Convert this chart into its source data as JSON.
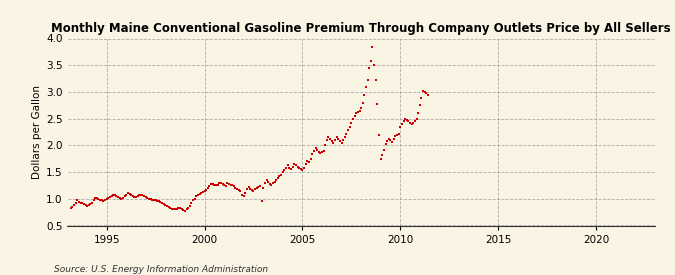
{
  "title": "Monthly Maine Conventional Gasoline Premium Through Company Outlets Price by All Sellers",
  "ylabel": "Dollars per Gallon",
  "source": "Source: U.S. Energy Information Administration",
  "background_color": "#FAF4E4",
  "plot_bg_color": "#FAF4E4",
  "dot_color": "#CC0000",
  "xlim": [
    1993.0,
    2023.0
  ],
  "ylim": [
    0.5,
    4.0
  ],
  "yticks": [
    0.5,
    1.0,
    1.5,
    2.0,
    2.5,
    3.0,
    3.5,
    4.0
  ],
  "xticks": [
    1995,
    2000,
    2005,
    2010,
    2015,
    2020
  ],
  "data": [
    [
      1993.17,
      0.83
    ],
    [
      1993.25,
      0.85
    ],
    [
      1993.33,
      0.88
    ],
    [
      1993.42,
      0.93
    ],
    [
      1993.5,
      0.97
    ],
    [
      1993.58,
      0.94
    ],
    [
      1993.67,
      0.93
    ],
    [
      1993.75,
      0.92
    ],
    [
      1993.83,
      0.9
    ],
    [
      1993.92,
      0.88
    ],
    [
      1994.0,
      0.87
    ],
    [
      1994.08,
      0.88
    ],
    [
      1994.17,
      0.9
    ],
    [
      1994.25,
      0.93
    ],
    [
      1994.33,
      0.97
    ],
    [
      1994.42,
      1.02
    ],
    [
      1994.5,
      1.01
    ],
    [
      1994.58,
      0.99
    ],
    [
      1994.67,
      0.98
    ],
    [
      1994.75,
      0.97
    ],
    [
      1994.83,
      0.96
    ],
    [
      1994.92,
      0.97
    ],
    [
      1995.0,
      0.99
    ],
    [
      1995.08,
      1.01
    ],
    [
      1995.17,
      1.04
    ],
    [
      1995.25,
      1.06
    ],
    [
      1995.33,
      1.08
    ],
    [
      1995.42,
      1.07
    ],
    [
      1995.5,
      1.05
    ],
    [
      1995.58,
      1.03
    ],
    [
      1995.67,
      1.01
    ],
    [
      1995.75,
      1.0
    ],
    [
      1995.83,
      1.02
    ],
    [
      1995.92,
      1.05
    ],
    [
      1996.0,
      1.08
    ],
    [
      1996.08,
      1.1
    ],
    [
      1996.17,
      1.09
    ],
    [
      1996.25,
      1.07
    ],
    [
      1996.33,
      1.05
    ],
    [
      1996.42,
      1.03
    ],
    [
      1996.5,
      1.04
    ],
    [
      1996.58,
      1.06
    ],
    [
      1996.67,
      1.07
    ],
    [
      1996.75,
      1.08
    ],
    [
      1996.83,
      1.07
    ],
    [
      1996.92,
      1.05
    ],
    [
      1997.0,
      1.04
    ],
    [
      1997.08,
      1.02
    ],
    [
      1997.17,
      1.0
    ],
    [
      1997.25,
      0.99
    ],
    [
      1997.33,
      0.98
    ],
    [
      1997.42,
      0.97
    ],
    [
      1997.5,
      0.97
    ],
    [
      1997.58,
      0.96
    ],
    [
      1997.67,
      0.95
    ],
    [
      1997.75,
      0.94
    ],
    [
      1997.83,
      0.93
    ],
    [
      1997.92,
      0.91
    ],
    [
      1998.0,
      0.89
    ],
    [
      1998.08,
      0.87
    ],
    [
      1998.17,
      0.85
    ],
    [
      1998.25,
      0.83
    ],
    [
      1998.33,
      0.81
    ],
    [
      1998.42,
      0.8
    ],
    [
      1998.5,
      0.8
    ],
    [
      1998.58,
      0.81
    ],
    [
      1998.67,
      0.83
    ],
    [
      1998.75,
      0.82
    ],
    [
      1998.83,
      0.8
    ],
    [
      1998.92,
      0.79
    ],
    [
      1999.0,
      0.78
    ],
    [
      1999.08,
      0.8
    ],
    [
      1999.17,
      0.83
    ],
    [
      1999.25,
      0.87
    ],
    [
      1999.33,
      0.93
    ],
    [
      1999.42,
      0.98
    ],
    [
      1999.5,
      1.0
    ],
    [
      1999.58,
      1.05
    ],
    [
      1999.67,
      1.07
    ],
    [
      1999.75,
      1.09
    ],
    [
      1999.83,
      1.11
    ],
    [
      1999.92,
      1.13
    ],
    [
      2000.0,
      1.15
    ],
    [
      2000.08,
      1.17
    ],
    [
      2000.17,
      1.2
    ],
    [
      2000.25,
      1.23
    ],
    [
      2000.33,
      1.27
    ],
    [
      2000.42,
      1.28
    ],
    [
      2000.5,
      1.26
    ],
    [
      2000.58,
      1.25
    ],
    [
      2000.67,
      1.26
    ],
    [
      2000.75,
      1.29
    ],
    [
      2000.83,
      1.3
    ],
    [
      2000.92,
      1.28
    ],
    [
      2001.0,
      1.26
    ],
    [
      2001.08,
      1.24
    ],
    [
      2001.17,
      1.3
    ],
    [
      2001.25,
      1.28
    ],
    [
      2001.33,
      1.26
    ],
    [
      2001.42,
      1.25
    ],
    [
      2001.5,
      1.23
    ],
    [
      2001.58,
      1.2
    ],
    [
      2001.67,
      1.18
    ],
    [
      2001.75,
      1.16
    ],
    [
      2001.83,
      1.14
    ],
    [
      2001.92,
      1.07
    ],
    [
      2002.0,
      1.05
    ],
    [
      2002.08,
      1.1
    ],
    [
      2002.17,
      1.18
    ],
    [
      2002.25,
      1.22
    ],
    [
      2002.33,
      1.19
    ],
    [
      2002.42,
      1.16
    ],
    [
      2002.5,
      1.14
    ],
    [
      2002.58,
      1.18
    ],
    [
      2002.67,
      1.2
    ],
    [
      2002.75,
      1.22
    ],
    [
      2002.83,
      1.24
    ],
    [
      2002.92,
      0.96
    ],
    [
      2003.0,
      1.2
    ],
    [
      2003.08,
      1.3
    ],
    [
      2003.17,
      1.35
    ],
    [
      2003.25,
      1.32
    ],
    [
      2003.33,
      1.28
    ],
    [
      2003.42,
      1.25
    ],
    [
      2003.5,
      1.3
    ],
    [
      2003.58,
      1.32
    ],
    [
      2003.67,
      1.35
    ],
    [
      2003.75,
      1.38
    ],
    [
      2003.83,
      1.42
    ],
    [
      2003.92,
      1.45
    ],
    [
      2004.0,
      1.5
    ],
    [
      2004.08,
      1.53
    ],
    [
      2004.17,
      1.58
    ],
    [
      2004.25,
      1.63
    ],
    [
      2004.33,
      1.58
    ],
    [
      2004.42,
      1.55
    ],
    [
      2004.5,
      1.6
    ],
    [
      2004.58,
      1.65
    ],
    [
      2004.67,
      1.63
    ],
    [
      2004.75,
      1.6
    ],
    [
      2004.83,
      1.58
    ],
    [
      2004.92,
      1.55
    ],
    [
      2005.0,
      1.53
    ],
    [
      2005.08,
      1.58
    ],
    [
      2005.17,
      1.65
    ],
    [
      2005.25,
      1.7
    ],
    [
      2005.33,
      1.68
    ],
    [
      2005.42,
      1.75
    ],
    [
      2005.5,
      1.83
    ],
    [
      2005.58,
      1.9
    ],
    [
      2005.67,
      1.95
    ],
    [
      2005.75,
      1.92
    ],
    [
      2005.83,
      1.88
    ],
    [
      2005.92,
      1.85
    ],
    [
      2006.0,
      1.87
    ],
    [
      2006.08,
      1.9
    ],
    [
      2006.17,
      2.0
    ],
    [
      2006.25,
      2.1
    ],
    [
      2006.33,
      2.15
    ],
    [
      2006.42,
      2.12
    ],
    [
      2006.5,
      2.08
    ],
    [
      2006.58,
      2.05
    ],
    [
      2006.67,
      2.1
    ],
    [
      2006.75,
      2.15
    ],
    [
      2006.83,
      2.12
    ],
    [
      2006.92,
      2.08
    ],
    [
      2007.0,
      2.05
    ],
    [
      2007.08,
      2.1
    ],
    [
      2007.17,
      2.15
    ],
    [
      2007.25,
      2.22
    ],
    [
      2007.33,
      2.28
    ],
    [
      2007.42,
      2.35
    ],
    [
      2007.5,
      2.42
    ],
    [
      2007.58,
      2.5
    ],
    [
      2007.67,
      2.55
    ],
    [
      2007.75,
      2.6
    ],
    [
      2007.83,
      2.62
    ],
    [
      2007.92,
      2.65
    ],
    [
      2008.0,
      2.7
    ],
    [
      2008.08,
      2.8
    ],
    [
      2008.17,
      2.95
    ],
    [
      2008.25,
      3.1
    ],
    [
      2008.33,
      3.22
    ],
    [
      2008.42,
      3.45
    ],
    [
      2008.5,
      3.57
    ],
    [
      2008.58,
      3.84
    ],
    [
      2008.67,
      3.5
    ],
    [
      2008.75,
      3.22
    ],
    [
      2008.83,
      2.78
    ],
    [
      2008.92,
      2.2
    ],
    [
      2009.0,
      1.75
    ],
    [
      2009.08,
      1.82
    ],
    [
      2009.17,
      1.92
    ],
    [
      2009.25,
      2.02
    ],
    [
      2009.33,
      2.08
    ],
    [
      2009.42,
      2.12
    ],
    [
      2009.5,
      2.1
    ],
    [
      2009.58,
      2.07
    ],
    [
      2009.67,
      2.12
    ],
    [
      2009.75,
      2.17
    ],
    [
      2009.83,
      2.2
    ],
    [
      2009.92,
      2.22
    ],
    [
      2010.0,
      2.35
    ],
    [
      2010.08,
      2.4
    ],
    [
      2010.17,
      2.45
    ],
    [
      2010.25,
      2.5
    ],
    [
      2010.33,
      2.48
    ],
    [
      2010.42,
      2.45
    ],
    [
      2010.5,
      2.42
    ],
    [
      2010.58,
      2.4
    ],
    [
      2010.67,
      2.42
    ],
    [
      2010.75,
      2.45
    ],
    [
      2010.83,
      2.5
    ],
    [
      2010.92,
      2.6
    ],
    [
      2011.0,
      2.75
    ],
    [
      2011.08,
      2.88
    ],
    [
      2011.17,
      3.02
    ],
    [
      2011.25,
      3.0
    ],
    [
      2011.33,
      2.98
    ],
    [
      2011.42,
      2.95
    ]
  ]
}
